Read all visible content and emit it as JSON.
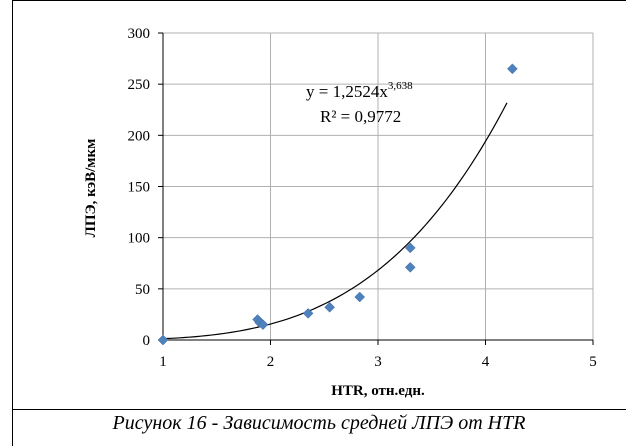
{
  "chart_data": {
    "type": "scatter",
    "title": "",
    "xlabel": "HTR, отн.едн.",
    "ylabel": "ЛПЭ, кэВ/мкм",
    "xlim": [
      1,
      5
    ],
    "ylim": [
      0,
      300
    ],
    "x_ticks": [
      "1",
      "2",
      "3",
      "4",
      "5"
    ],
    "y_ticks": [
      "0",
      "50",
      "100",
      "150",
      "200",
      "250",
      "300"
    ],
    "grid": true,
    "marker_color": "#4f81bd",
    "trendline_color": "#000000",
    "points": [
      {
        "x": 1.0,
        "y": 0
      },
      {
        "x": 1.88,
        "y": 20
      },
      {
        "x": 1.9,
        "y": 17
      },
      {
        "x": 1.93,
        "y": 15
      },
      {
        "x": 2.35,
        "y": 26
      },
      {
        "x": 2.55,
        "y": 32
      },
      {
        "x": 2.83,
        "y": 42
      },
      {
        "x": 3.3,
        "y": 71
      },
      {
        "x": 3.3,
        "y": 90
      },
      {
        "x": 4.25,
        "y": 265
      }
    ],
    "trendline": {
      "type": "power",
      "coefficient": 1.2524,
      "exponent": 3.638,
      "x_range": [
        1,
        4.2
      ],
      "equation_main": "y = 1,2524x",
      "equation_exponent": "3,638",
      "r_squared": "R² = 0,9772"
    }
  },
  "caption": "Рисунок 16 - Зависимость средней ЛПЭ от HTR"
}
